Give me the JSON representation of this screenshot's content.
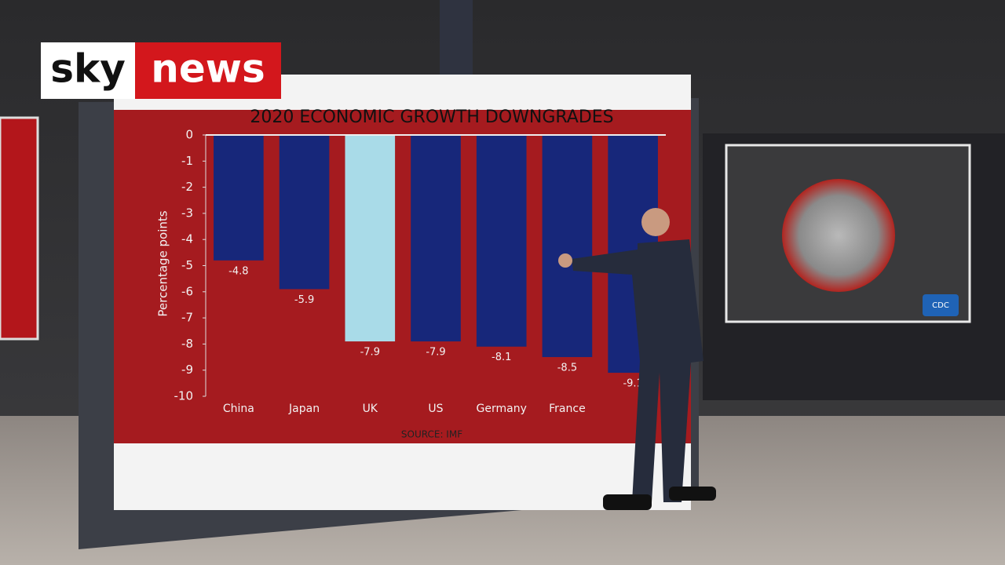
{
  "branding": {
    "left": "sky",
    "right": "news"
  },
  "chart_data": {
    "type": "bar",
    "title": "2020 ECONOMIC GROWTH DOWNGRADES",
    "y_label": "Percentage points",
    "source": "SOURCE: IMF",
    "categories": [
      "China",
      "Japan",
      "UK",
      "US",
      "Germany",
      "France",
      null
    ],
    "values": [
      -4.8,
      -5.9,
      -7.9,
      -7.9,
      -8.1,
      -8.5,
      -9.1
    ],
    "colors": [
      "#17277a",
      "#17277a",
      "#a9dbe8",
      "#17277a",
      "#17277a",
      "#17277a",
      "#17277a"
    ],
    "ylim": [
      -10,
      0
    ],
    "yticks": [
      0,
      -1,
      -2,
      -3,
      -4,
      -5,
      -6,
      -7,
      -8,
      -9,
      -10
    ]
  },
  "screen_badge": "CDC"
}
